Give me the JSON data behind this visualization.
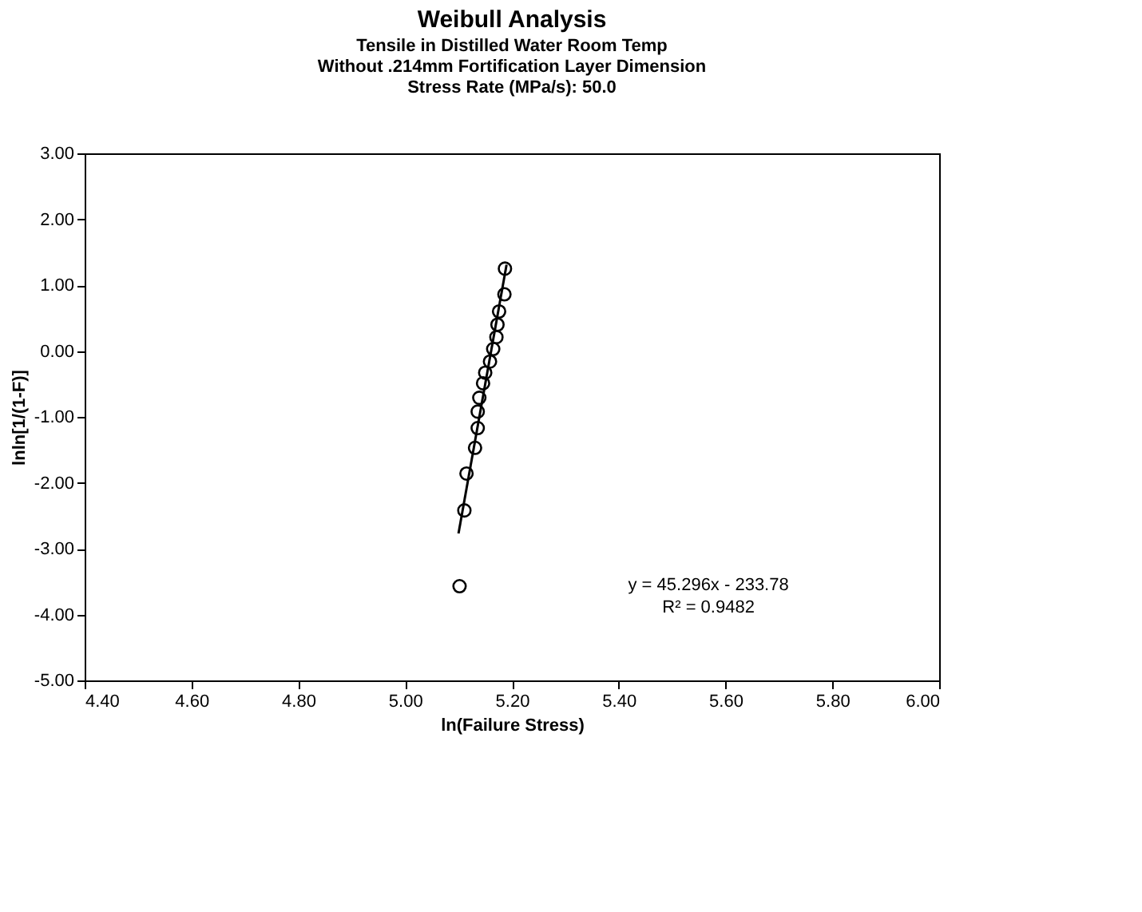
{
  "chart_data": {
    "type": "scatter",
    "title": "Weibull Analysis",
    "subtitle": [
      "Tensile in Distilled Water Room Temp",
      "Without .214mm Fortification Layer Dimension",
      "Stress Rate (MPa/s): 50.0"
    ],
    "xlabel": "ln(Failure Stress)",
    "ylabel": "lnln[1/(1-F)]",
    "series": [
      {
        "type": "scatter",
        "color": "#000000",
        "marker": "circle",
        "x": [
          5.187,
          5.186,
          5.176,
          5.173,
          5.171,
          5.165,
          5.159,
          5.15,
          5.146,
          5.139,
          5.136,
          5.136,
          5.131,
          5.115,
          5.111,
          5.102
        ],
        "values": [
          1.25,
          0.86,
          0.6,
          0.4,
          0.21,
          0.03,
          -0.16,
          -0.33,
          -0.49,
          -0.71,
          -0.92,
          -1.17,
          -1.47,
          -1.86,
          -2.42,
          -3.57
        ]
      },
      {
        "type": "line",
        "color": "#000000",
        "marker": "none",
        "line_style": "solid",
        "x": [
          5.1,
          5.19
        ],
        "values": [
          -2.77,
          1.31
        ]
      }
    ],
    "xlim": [
      4.4,
      6.0
    ],
    "xticks": [
      {
        "value": 4.4,
        "label": "4.40"
      },
      {
        "value": 4.6,
        "label": "4.60"
      },
      {
        "value": 4.8,
        "label": "4.80"
      },
      {
        "value": 5.0,
        "label": "5.00"
      },
      {
        "value": 5.2,
        "label": "5.20"
      },
      {
        "value": 5.4,
        "label": "5.40"
      },
      {
        "value": 5.6,
        "label": "5.60"
      },
      {
        "value": 5.8,
        "label": "5.80"
      },
      {
        "value": 6.0,
        "label": "6.00"
      }
    ],
    "ylim": [
      -5,
      3
    ],
    "yticks": [
      {
        "value": -5,
        "label": "-5.00"
      },
      {
        "value": -4,
        "label": "-4.00"
      },
      {
        "value": -3,
        "label": "-3.00"
      },
      {
        "value": -2,
        "label": "-2.00"
      },
      {
        "value": -1,
        "label": "-1.00"
      },
      {
        "value": 0,
        "label": "0.00"
      },
      {
        "value": 1,
        "label": "1.00"
      },
      {
        "value": 2,
        "label": "2.00"
      },
      {
        "value": 3,
        "label": "3.00"
      }
    ],
    "annotations": [
      "y = 45.296x - 233.78",
      "R² = 0.9482"
    ],
    "grid": false
  }
}
